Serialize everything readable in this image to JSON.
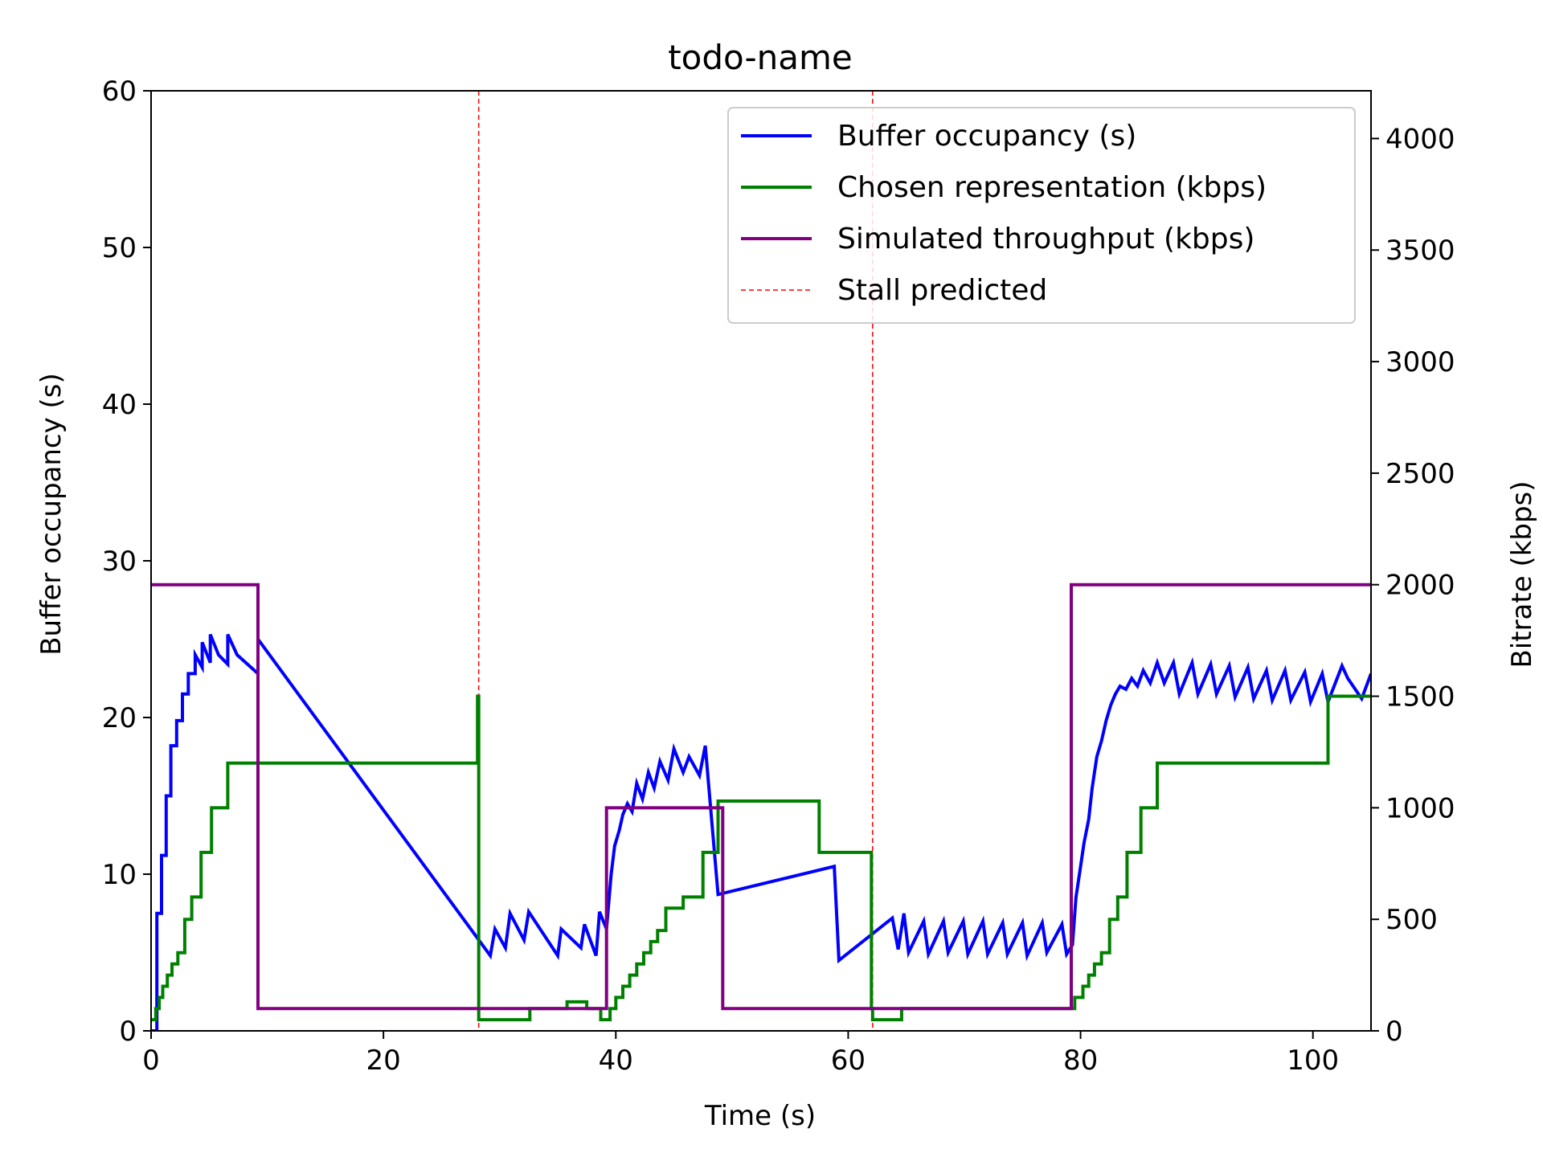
{
  "chart_data": {
    "type": "line",
    "title": "todo-name",
    "xlabel": "Time (s)",
    "ylabel_left": "Buffer occupancy (s)",
    "ylabel_right": "Bitrate (kbps)",
    "xlim": [
      0,
      105
    ],
    "ylim_left": [
      0,
      60
    ],
    "ylim_right": [
      0,
      4214
    ],
    "xticks": [
      0,
      20,
      40,
      60,
      80,
      100
    ],
    "yticks_left": [
      0,
      10,
      20,
      30,
      40,
      50,
      60
    ],
    "yticks_right": [
      0,
      500,
      1000,
      1500,
      2000,
      2500,
      3000,
      3500,
      4000
    ],
    "grid": false,
    "legend_position": "top-right",
    "colors": {
      "buffer": "#0000ff",
      "representation": "#008000",
      "throughput": "#800080",
      "stall": "#ff0000",
      "left_axis_label": "#0000ff"
    },
    "series": [
      {
        "name": "Buffer occupancy (s)",
        "axis": "left",
        "x": [
          0,
          0.5,
          0.5,
          0.9,
          0.9,
          1.3,
          1.3,
          1.7,
          1.7,
          2.2,
          2.2,
          2.7,
          2.7,
          3.2,
          3.2,
          3.8,
          3.8,
          4.4,
          4.4,
          5.1,
          5.1,
          5.8,
          5.8,
          6.6,
          6.6,
          7.4,
          9.2,
          9.2,
          29.2,
          29.6,
          30.5,
          30.9,
          32.1,
          32.5,
          35.0,
          35.3,
          37.0,
          37.3,
          38.3,
          38.6,
          39.2,
          39.6,
          39.9,
          40.3,
          40.6,
          41.0,
          41.4,
          41.8,
          42.3,
          42.8,
          43.3,
          43.8,
          44.5,
          45.0,
          45.8,
          46.3,
          47.2,
          47.7,
          48.8,
          58.8,
          59.2,
          63.8,
          64.3,
          64.8,
          65.2,
          66.5,
          66.9,
          68.2,
          68.6,
          69.9,
          70.3,
          71.6,
          72.0,
          73.3,
          73.7,
          75.0,
          75.4,
          76.7,
          77.1,
          78.4,
          78.8,
          79.3,
          79.6,
          80.0,
          80.3,
          80.7,
          81.0,
          81.4,
          81.8,
          82.2,
          82.6,
          83.0,
          83.4,
          83.9,
          84.4,
          84.9,
          85.4,
          86.0,
          86.6,
          87.2,
          88.0,
          88.5,
          89.6,
          90.1,
          91.2,
          91.7,
          92.8,
          93.3,
          94.4,
          94.9,
          96.0,
          96.5,
          97.6,
          98.1,
          99.3,
          99.8,
          100.8,
          101.3,
          102.5,
          103.0,
          104.2,
          105.0
        ],
        "y": [
          0,
          0,
          7.5,
          7.5,
          11.2,
          11.2,
          15.0,
          15.0,
          18.2,
          18.2,
          19.8,
          19.8,
          21.5,
          21.5,
          22.8,
          22.8,
          24.0,
          23.2,
          24.8,
          23.5,
          25.3,
          24.0,
          24.0,
          23.4,
          25.3,
          24.0,
          22.8,
          25.0,
          4.8,
          6.5,
          5.3,
          7.5,
          5.8,
          7.6,
          4.8,
          6.5,
          5.3,
          6.8,
          4.8,
          7.6,
          6.5,
          10.0,
          11.8,
          12.8,
          13.8,
          14.5,
          14.0,
          15.8,
          14.8,
          16.5,
          15.5,
          17.2,
          16.0,
          18.0,
          16.5,
          17.5,
          16.3,
          18.2,
          8.7,
          10.5,
          4.5,
          7.2,
          5.2,
          7.5,
          5.0,
          7.0,
          4.9,
          7.0,
          5.0,
          7.0,
          4.9,
          7.0,
          4.9,
          6.9,
          4.9,
          6.9,
          4.8,
          6.9,
          5.0,
          6.8,
          4.9,
          5.5,
          8.5,
          10.5,
          12.0,
          13.5,
          15.5,
          17.5,
          18.5,
          19.8,
          20.8,
          21.5,
          22.0,
          21.8,
          22.5,
          22.0,
          23.0,
          22.2,
          23.5,
          22.2,
          23.5,
          21.5,
          23.5,
          21.5,
          23.4,
          21.5,
          23.3,
          21.3,
          23.2,
          21.2,
          23.0,
          21.1,
          23.0,
          21.1,
          22.9,
          21.0,
          22.8,
          21.0,
          23.3,
          22.5,
          21.2,
          22.8
        ]
      },
      {
        "name": "Chosen representation (kbps)",
        "axis": "right",
        "x": [
          0,
          0.4,
          0.7,
          1.0,
          1.4,
          1.8,
          2.3,
          2.9,
          3.5,
          4.3,
          5.2,
          6.6,
          28.1,
          28.2,
          30.5,
          32.6,
          35.8,
          37.5,
          38.7,
          39.5,
          40.0,
          40.6,
          41.2,
          41.8,
          42.4,
          43.0,
          43.6,
          44.3,
          45.8,
          47.5,
          48.8,
          57.5,
          62.0,
          62.1,
          64.6,
          79.5,
          80.2,
          80.7,
          81.2,
          81.8,
          82.5,
          83.2,
          84.0,
          85.2,
          86.6,
          101.3,
          102.9,
          105.0
        ],
        "y": [
          50,
          100,
          150,
          200,
          250,
          300,
          350,
          500,
          600,
          800,
          1000,
          1200,
          1500,
          50,
          50,
          100,
          130,
          100,
          50,
          100,
          150,
          200,
          250,
          300,
          350,
          400,
          450,
          550,
          600,
          800,
          1030,
          800,
          100,
          50,
          100,
          150,
          200,
          250,
          300,
          350,
          500,
          600,
          800,
          1000,
          1200,
          1500,
          1500,
          1500
        ],
        "step": "post"
      },
      {
        "name": "Simulated throughput (kbps)",
        "axis": "right",
        "x": [
          0,
          9.2,
          39.2,
          49.2,
          79.2,
          105.0
        ],
        "y": [
          2000,
          100,
          1000,
          100,
          2000,
          2000
        ],
        "step": "post"
      },
      {
        "name": "Stall predicted",
        "type": "vline",
        "x": [
          28.2,
          62.1
        ]
      }
    ]
  }
}
